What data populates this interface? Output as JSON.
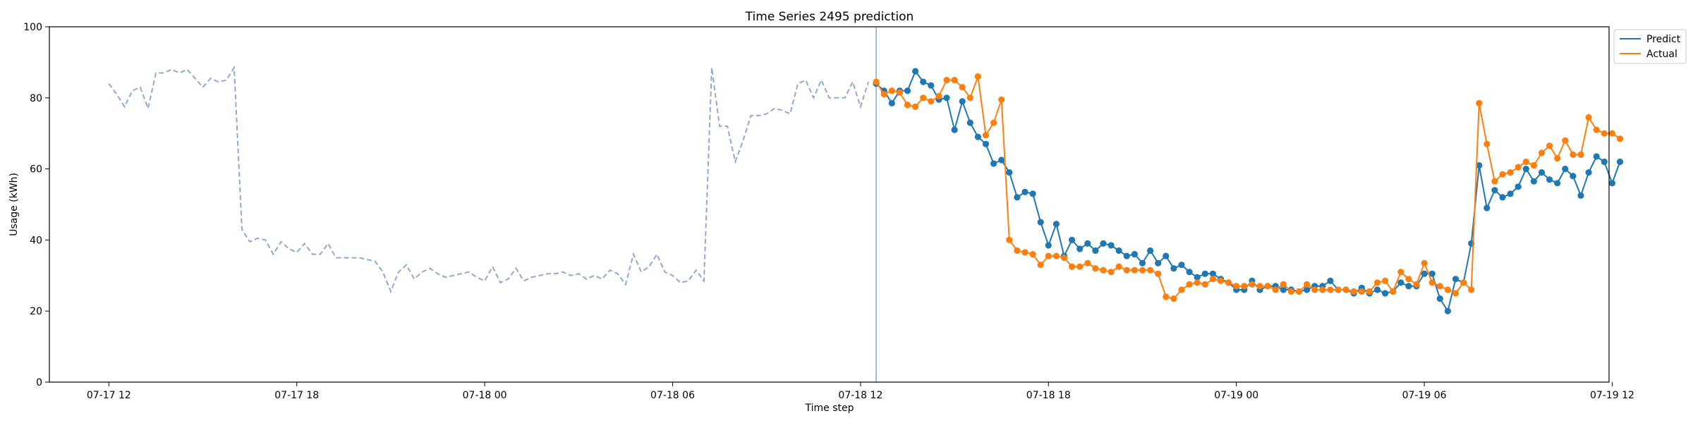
{
  "chart_data": {
    "type": "line",
    "title": "Time Series 2495 prediction",
    "xlabel": "Time step",
    "ylabel": "Usage (kWh)",
    "ylim": [
      0,
      100
    ],
    "xlim_hours": [
      -1.9,
      47.9
    ],
    "grid": false,
    "legend_position": "top-right (outside plot)",
    "x_ticks": [
      {
        "h": 0,
        "label": "07-17 12"
      },
      {
        "h": 6,
        "label": "07-17 18"
      },
      {
        "h": 12,
        "label": "07-18 00"
      },
      {
        "h": 18,
        "label": "07-18 06"
      },
      {
        "h": 24,
        "label": "07-18 12"
      },
      {
        "h": 30,
        "label": "07-18 18"
      },
      {
        "h": 36,
        "label": "07-19 00"
      },
      {
        "h": 42,
        "label": "07-19 06"
      },
      {
        "h": 48,
        "label": "07-19 12"
      }
    ],
    "y_ticks": [
      0,
      20,
      40,
      60,
      80,
      100
    ],
    "forecast_start_hour": 24.5,
    "step_hours": 0.25,
    "history": {
      "start_hour": 0,
      "color": "#8fa9d1",
      "values": [
        84,
        81,
        77.5,
        82,
        83,
        77,
        87,
        87,
        88,
        87,
        88,
        85.5,
        83,
        85.5,
        84.5,
        85,
        88.5,
        43,
        39.5,
        40.5,
        40,
        36,
        39.5,
        37.5,
        36.5,
        39,
        36,
        36,
        39,
        35,
        35,
        35,
        35,
        34.5,
        34,
        31,
        25.5,
        31,
        33,
        29,
        31,
        32,
        30.5,
        29.5,
        30,
        30.5,
        31,
        29.5,
        28.5,
        32.5,
        28,
        29,
        32,
        28.5,
        29.5,
        30,
        30.5,
        30.5,
        31,
        30,
        30.5,
        29,
        30,
        29,
        31.5,
        30.5,
        27.5,
        36,
        31,
        32.5,
        36,
        31,
        30,
        28,
        28.5,
        31.5,
        28.5,
        88.5,
        72,
        72,
        62,
        68,
        75,
        75,
        75.5,
        77,
        76.5,
        75.5,
        84,
        85,
        80,
        85,
        80,
        80,
        80,
        84.5,
        77.5,
        84.5
      ]
    },
    "series": [
      {
        "name": "Predict",
        "color": "#1f77b4",
        "values": [
          84,
          82,
          78.5,
          82,
          82,
          87.5,
          84.5,
          83.5,
          79.5,
          80,
          71,
          79,
          73,
          69,
          67,
          61.5,
          62.5,
          59,
          52,
          53.5,
          53,
          45,
          38.5,
          44.5,
          35.5,
          40,
          37.5,
          39,
          37,
          39,
          38.5,
          37,
          35.5,
          36,
          33.5,
          37,
          33.5,
          35.5,
          32,
          33,
          31,
          29.5,
          30.5,
          30.5,
          29,
          28,
          26,
          26,
          28.5,
          26,
          27,
          27,
          26,
          26,
          25.5,
          26,
          27,
          27,
          28.5,
          26,
          26,
          25,
          26.5,
          25,
          26,
          25,
          25.5,
          28,
          27,
          27,
          30.5,
          30.5,
          23.5,
          20,
          29,
          28,
          39,
          61,
          49,
          54,
          52,
          53,
          55,
          60,
          56.5,
          59,
          57,
          56,
          60,
          58,
          52.5,
          59,
          63.5,
          62,
          56,
          62
        ]
      },
      {
        "name": "Actual",
        "color": "#ff7f0e",
        "values": [
          84.5,
          81,
          82,
          81.5,
          78,
          77.5,
          80,
          79,
          80.5,
          85,
          85,
          83,
          80,
          86,
          69.5,
          73,
          79.5,
          40,
          37,
          36.5,
          36,
          33,
          35.5,
          35.5,
          35,
          32.5,
          32.5,
          33.5,
          32,
          31.5,
          31,
          32.5,
          31.5,
          31.5,
          31.5,
          31.5,
          30.5,
          24,
          23.5,
          26,
          27.5,
          28,
          27.5,
          29,
          28.5,
          28,
          27,
          27,
          27.5,
          27,
          27,
          26,
          27.5,
          25.5,
          25.5,
          27.5,
          26,
          26,
          26,
          26,
          26,
          25.5,
          25.5,
          25.5,
          28,
          28.5,
          25.5,
          31,
          29,
          27.5,
          33.5,
          28,
          27,
          26,
          25,
          28,
          26,
          78.5,
          67,
          56.5,
          58.5,
          59,
          60.5,
          62,
          61,
          64.5,
          66.5,
          63,
          68,
          64,
          64,
          74.5,
          71,
          70,
          70,
          68.5
        ]
      }
    ]
  }
}
